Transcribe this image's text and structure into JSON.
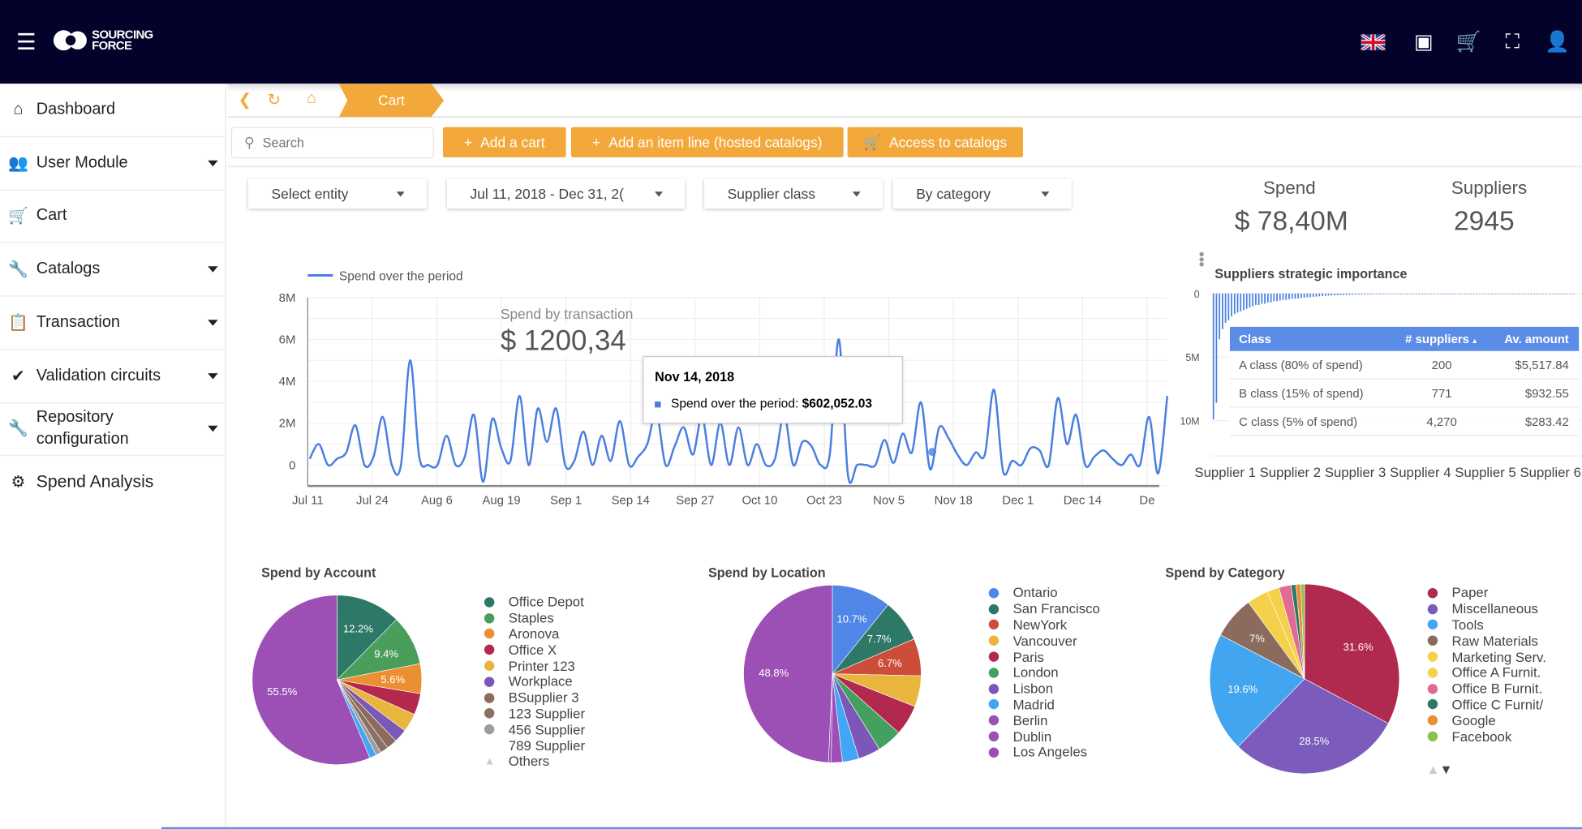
{
  "header": {
    "brand": "SOURCING FORCE",
    "icons": [
      "menu-icon",
      "uk-flag-icon",
      "box-icon",
      "cart-icon",
      "fullscreen-icon",
      "user-icon"
    ]
  },
  "sidebar": {
    "items": [
      {
        "label": "Dashboard",
        "icon": "home-icon",
        "expandable": false
      },
      {
        "label": "User Module",
        "icon": "users-icon",
        "expandable": true
      },
      {
        "label": "Cart",
        "icon": "cart-icon",
        "expandable": false
      },
      {
        "label": "Catalogs",
        "icon": "wrench-icon",
        "expandable": true
      },
      {
        "label": "Transaction",
        "icon": "clipboard-icon",
        "expandable": true
      },
      {
        "label": "Validation circuits",
        "icon": "double-check-icon",
        "expandable": true
      },
      {
        "label": "Repository configuration",
        "icon": "wrench-icon",
        "expandable": true
      },
      {
        "label": "Spend Analysis",
        "icon": "gear-icon",
        "expandable": false
      }
    ]
  },
  "breadcrumb": {
    "current": "Cart"
  },
  "toolbar": {
    "search_placeholder": "Search",
    "add_cart": "Add a cart",
    "add_item_line": "Add an item line (hosted catalogs)",
    "access_catalogs": "Access to catalogs"
  },
  "filters": {
    "entity": "Select entity",
    "date_range": "Jul 11, 2018 - Dec 31, 2(",
    "supplier_class": "Supplier class",
    "grouping": "By category"
  },
  "kpis": {
    "spend_label": "Spend",
    "spend_value": "$ 78,40M",
    "suppliers_label": "Suppliers",
    "suppliers_value": "2945"
  },
  "colors": {
    "header_bg": "#02022b",
    "accent": "#f3a83b",
    "series": "#4a7fe0"
  },
  "chart_data": [
    {
      "type": "line",
      "legend": "Spend over the period",
      "legend_position": "top-left",
      "overlay_label": "Spend by transaction",
      "overlay_value": "$ 1200,34",
      "x_range": [
        "2018-07-11",
        "2018-12-31"
      ],
      "x_ticks": [
        "Jul 11",
        "Jul 24",
        "Aug 6",
        "Aug 19",
        "Sep 1",
        "Sep 14",
        "Sep 27",
        "Oct 10",
        "Oct 23",
        "Nov 5",
        "Nov 18",
        "Dec 1",
        "Dec 14",
        "De"
      ],
      "y_ticks": [
        "8M",
        "6M",
        "4M",
        "2M",
        "0"
      ],
      "ylim": [
        -1000000,
        8000000
      ],
      "grid": true,
      "values_millions": [
        0.3,
        1.0,
        0,
        0.3,
        0.6,
        1.9,
        0,
        0.4,
        2.3,
        0,
        0,
        5.0,
        0.4,
        0,
        0,
        1.4,
        0,
        0.4,
        2.4,
        -0.8,
        2.2,
        0.8,
        0.2,
        3.3,
        0,
        2.7,
        1.1,
        2.7,
        0,
        0.2,
        1.6,
        0,
        1.4,
        0.2,
        2.1,
        0,
        0.4,
        1.0,
        2.5,
        0,
        0.9,
        1.8,
        0.5,
        2.3,
        0,
        2.0,
        0,
        1.8,
        0,
        1.0,
        0,
        0.3,
        2.4,
        0,
        1.1,
        0.9,
        0,
        0.5,
        6.0,
        -0.5,
        0,
        0,
        0,
        1.2,
        0.1,
        1.5,
        0.6,
        3.0,
        -0.2,
        1.8,
        1.3,
        0.5,
        0,
        0.6,
        0.5,
        3.6,
        -0.3,
        0.2,
        0,
        0.8,
        0.7,
        0,
        3.2,
        1.0,
        2.4,
        0,
        0.4,
        0.7,
        0.3,
        0,
        0.5,
        0,
        2.3,
        -0.4,
        3.3
      ],
      "tooltip": {
        "date": "Nov 14, 2018",
        "label": "Spend over the period:",
        "value": "$602,052.03"
      }
    },
    {
      "type": "bar",
      "title": "Suppliers strategic importance",
      "y_ticks": [
        "0",
        "5M",
        "10M"
      ],
      "ylim": [
        0,
        10000000
      ],
      "y_inverted": true,
      "categories": [
        "Supplier 1",
        "Supplier 2",
        "Supplier 3",
        "Supplier 4",
        "Supplier 5",
        "Supplier 6"
      ],
      "values_millions": [
        9.9,
        8.6,
        3.6,
        2.8,
        2.3,
        2.1,
        1.8,
        1.6,
        1.5,
        1.4,
        1.3,
        1.2,
        1.1,
        1.0,
        0.9,
        0.9,
        0.8,
        0.8,
        0.7,
        0.7,
        0.6,
        0.6,
        0.55,
        0.5,
        0.5,
        0.45,
        0.42,
        0.4,
        0.38,
        0.35,
        0.33,
        0.3,
        0.28,
        0.26,
        0.24,
        0.22,
        0.2,
        0.18,
        0.16,
        0.15,
        0.14,
        0.13,
        0.12,
        0.11,
        0.1,
        0.1,
        0.09,
        0.08,
        0.08,
        0.07,
        0.07,
        0.06,
        0.06,
        0.05,
        0.05,
        0.05,
        0.04,
        0.04,
        0.04,
        0.03
      ],
      "table": {
        "headers": [
          "Class",
          "# suppliers",
          "Av. amount"
        ],
        "rows": [
          [
            "A class (80% of spend)",
            "200",
            "$5,517.84"
          ],
          [
            "B class (15% of spend)",
            "771",
            "$932.55"
          ],
          [
            "C class (5% of spend)",
            "4,270",
            "$283.42"
          ]
        ]
      }
    },
    {
      "type": "pie",
      "title": "Spend by Account",
      "slices": [
        {
          "label": "Office Depot",
          "value": 12.2,
          "color": "#2e7867",
          "shown": "12.2%"
        },
        {
          "label": "Staples",
          "value": 9.4,
          "color": "#4a9e5c",
          "shown": "9.4%"
        },
        {
          "label": "Aronova",
          "value": 5.6,
          "color": "#ec8f33",
          "shown": "5.6%"
        },
        {
          "label": "Office X",
          "value": 4,
          "color": "#b3294e"
        },
        {
          "label": "Printer 123",
          "value": 3.5,
          "color": "#e9b53d"
        },
        {
          "label": "Workplace",
          "value": 2.5,
          "color": "#7b57b8"
        },
        {
          "label": "BSupplier 3",
          "value": 2,
          "color": "#8b6b5d"
        },
        {
          "label": "123 Supplier",
          "value": 1.5,
          "color": "#8d6e63"
        },
        {
          "label": "456 Supplier",
          "value": 1,
          "color": "#9e9e9e"
        },
        {
          "label": "789 Supplier",
          "value": 1.3,
          "color": "#42a5f5"
        },
        {
          "label": "Others",
          "value": 55.5,
          "color": "#9c4fb5",
          "shown": "55.5%"
        }
      ]
    },
    {
      "type": "pie",
      "title": "Spend by Location",
      "slices": [
        {
          "label": "Ontario",
          "value": 10.7,
          "color": "#4f86e8",
          "shown": "10.7%"
        },
        {
          "label": "San Francisco",
          "value": 7.7,
          "color": "#2e7867",
          "shown": "7.7%"
        },
        {
          "label": "NewYork",
          "value": 6.7,
          "color": "#cc4d3a",
          "shown": "6.7%"
        },
        {
          "label": "Vancouver",
          "value": 5.6,
          "color": "#e9b53d"
        },
        {
          "label": "Paris",
          "value": 5.5,
          "color": "#b3294e"
        },
        {
          "label": "London",
          "value": 4.5,
          "color": "#44a05e"
        },
        {
          "label": "Lisbon",
          "value": 4,
          "color": "#7b57b8"
        },
        {
          "label": "Madrid",
          "value": 3,
          "color": "#42a5f5"
        },
        {
          "label": "Berlin",
          "value": 2,
          "color": "#9c4fb5"
        },
        {
          "label": "Dublin",
          "value": 0.5,
          "color": "#9c4fb5"
        },
        {
          "label": "Los Angeles",
          "value": 48.8,
          "color": "#9c4fb5",
          "shown": "48.8%"
        }
      ]
    },
    {
      "type": "pie",
      "title": "Spend by Category",
      "slices": [
        {
          "label": "Paper",
          "value": 31.6,
          "color": "#b0294f",
          "shown": "31.6%"
        },
        {
          "label": "Miscellaneous",
          "value": 28.5,
          "color": "#7b5cbc",
          "shown": "28.5%"
        },
        {
          "label": "Tools",
          "value": 19.6,
          "color": "#42a5f0",
          "shown": "19.6%"
        },
        {
          "label": "Raw Materials",
          "value": 7,
          "color": "#8b6b5d",
          "shown": "7%"
        },
        {
          "label": "Marketing Serv.",
          "value": 3.5,
          "color": "#f5d04a"
        },
        {
          "label": "Office A Furnit.",
          "value": 2,
          "color": "#f5d04a"
        },
        {
          "label": "Office B Furnit.",
          "value": 2,
          "color": "#e06b94"
        },
        {
          "label": "Office C Furnit/",
          "value": 0.8,
          "color": "#2e7867"
        },
        {
          "label": "Google",
          "value": 0.8,
          "color": "#ec8f33"
        },
        {
          "label": "Facebook",
          "value": 0.6,
          "color": "#8bc34a"
        }
      ]
    }
  ]
}
